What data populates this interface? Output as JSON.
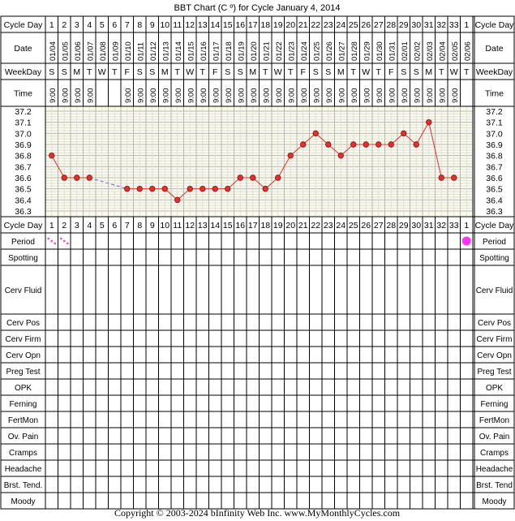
{
  "title": "BBT Chart (C º) for Cycle January 4, 2014",
  "copyright": "Copyright © 2003-2024 bInfinity Web Inc.     www.MyMonthlyCycles.com",
  "row_labels": {
    "cycle_day": "Cycle Day",
    "date": "Date",
    "weekday": "WeekDay",
    "time": "Time"
  },
  "chart_data": {
    "type": "line",
    "ylim": [
      36.3,
      37.2
    ],
    "y_ticks": [
      "37.2",
      "37.1",
      "37.0",
      "36.9",
      "36.8",
      "36.7",
      "36.6",
      "36.5",
      "36.4",
      "36.3"
    ],
    "cycle_days": [
      "1",
      "2",
      "3",
      "4",
      "5",
      "6",
      "7",
      "8",
      "9",
      "10",
      "11",
      "12",
      "13",
      "14",
      "15",
      "16",
      "17",
      "18",
      "19",
      "20",
      "21",
      "22",
      "23",
      "24",
      "25",
      "26",
      "27",
      "28",
      "29",
      "30",
      "31",
      "32",
      "33",
      "1"
    ],
    "dates": [
      "01/04",
      "01/05",
      "01/06",
      "01/07",
      "01/08",
      "01/09",
      "01/10",
      "01/11",
      "01/12",
      "01/13",
      "01/14",
      "01/15",
      "01/16",
      "01/17",
      "01/18",
      "01/19",
      "01/20",
      "01/21",
      "01/22",
      "01/23",
      "01/24",
      "01/25",
      "01/26",
      "01/27",
      "01/28",
      "01/29",
      "01/30",
      "01/31",
      "02/01",
      "02/02",
      "02/03",
      "02/04",
      "02/05",
      "02/06"
    ],
    "weekdays": [
      "S",
      "S",
      "M",
      "T",
      "W",
      "T",
      "F",
      "S",
      "S",
      "M",
      "T",
      "W",
      "T",
      "F",
      "S",
      "S",
      "M",
      "T",
      "W",
      "T",
      "F",
      "S",
      "S",
      "M",
      "T",
      "W",
      "T",
      "F",
      "S",
      "S",
      "M",
      "T",
      "W",
      "T"
    ],
    "times": [
      "9:00",
      "9:00",
      "9:00",
      "9:00",
      "",
      "",
      "9:00",
      "9:00",
      "9:00",
      "9:00",
      "9:00",
      "9:00",
      "9:00",
      "9:00",
      "9:00",
      "9:00",
      "9:00",
      "9:00",
      "9:00",
      "9:00",
      "9:00",
      "9:00",
      "9:00",
      "9:00",
      "9:00",
      "9:00",
      "9:00",
      "9:00",
      "9:00",
      "9:00",
      "9:00",
      "9:00",
      "9:00",
      ""
    ],
    "temps": [
      36.8,
      36.6,
      36.6,
      36.6,
      null,
      null,
      36.5,
      36.5,
      36.5,
      36.5,
      36.4,
      36.5,
      36.5,
      36.5,
      36.5,
      36.6,
      36.6,
      36.5,
      36.6,
      36.8,
      36.9,
      37.0,
      36.9,
      36.8,
      36.9,
      36.9,
      36.9,
      36.9,
      37.0,
      36.9,
      37.1,
      36.6,
      36.6,
      null
    ],
    "grid": true,
    "series_color": "#e03030",
    "gap_line_color": "#6a6ae0"
  },
  "observation_rows": [
    "Period",
    "Spotting",
    "Cerv Fluid",
    "Cerv Pos",
    "Cerv Firm",
    "Cerv Opn",
    "Preg Test",
    "OPK",
    "Ferning",
    "FertMon",
    "Ov. Pain",
    "Cramps",
    "Headache",
    "Brst. Tend.",
    "Moody"
  ],
  "observation_rows_right": [
    "Period",
    "Spotting",
    "Cerv Fluid",
    "Cerv Pos",
    "Cerv Firm",
    "Cerv Opn",
    "Preg Test",
    "OPK",
    "Ferning",
    "FertMon",
    "Ov. Pain",
    "Cramps",
    "Headache",
    "Brst. Tend",
    "Moody"
  ],
  "period": {
    "spotting_days_index": [
      0,
      1
    ],
    "full_dot_day_index": 33,
    "spot_color": "#e060c0",
    "dot_color": "#ff33ff"
  }
}
